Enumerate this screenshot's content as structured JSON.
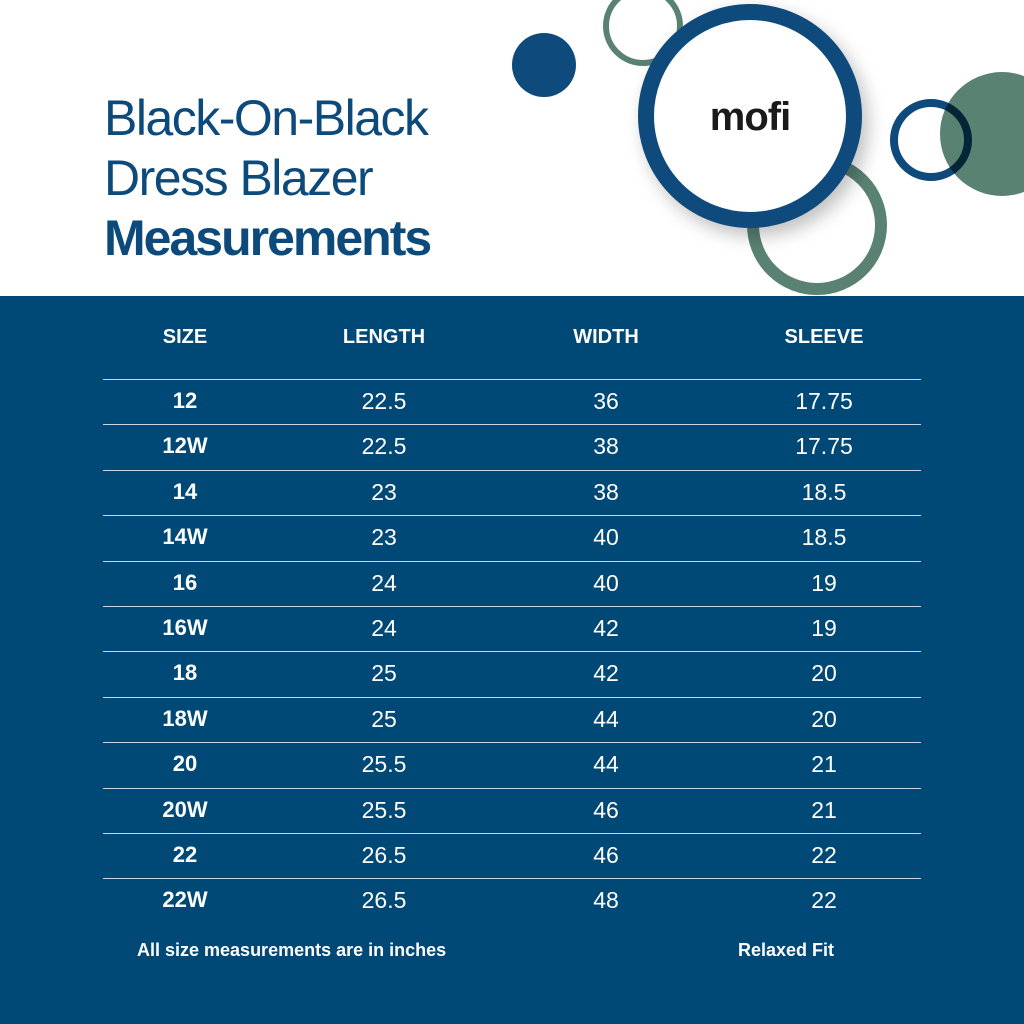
{
  "header": {
    "title_line1": "Black-On-Black",
    "title_line2": "Dress Blazer",
    "title_line3": "Measurements",
    "logo_text": "mofi"
  },
  "colors": {
    "navy": "#004876",
    "green": "#5a8272",
    "title": "#0d4a7c"
  },
  "table": {
    "columns": [
      "SIZE",
      "LENGTH",
      "WIDTH",
      "SLEEVE"
    ],
    "rows": [
      [
        "12",
        "22.5",
        "36",
        "17.75"
      ],
      [
        "12W",
        "22.5",
        "38",
        "17.75"
      ],
      [
        "14",
        "23",
        "38",
        "18.5"
      ],
      [
        "14W",
        "23",
        "40",
        "18.5"
      ],
      [
        "16",
        "24",
        "40",
        "19"
      ],
      [
        "16W",
        "24",
        "42",
        "19"
      ],
      [
        "18",
        "25",
        "42",
        "20"
      ],
      [
        "18W",
        "25",
        "44",
        "20"
      ],
      [
        "20",
        "25.5",
        "44",
        "21"
      ],
      [
        "20W",
        "25.5",
        "46",
        "21"
      ],
      [
        "22",
        "26.5",
        "46",
        "22"
      ],
      [
        "22W",
        "26.5",
        "48",
        "22"
      ]
    ]
  },
  "footer": {
    "note": "All size measurements are in inches",
    "fit": "Relaxed Fit"
  }
}
